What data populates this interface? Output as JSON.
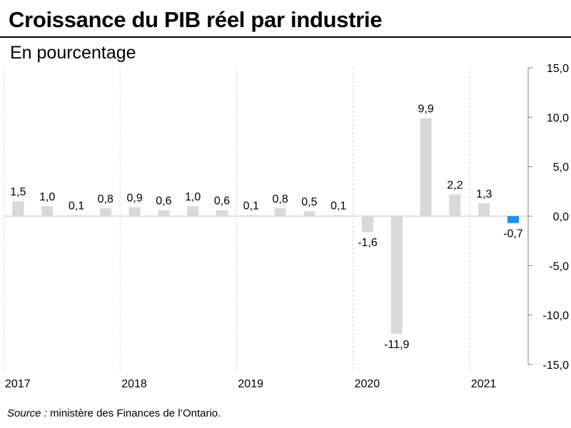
{
  "header": {
    "title": "Croissance du PIB réel par industrie",
    "subtitle": "En pourcentage"
  },
  "footer": {
    "source_label": "Source :",
    "source_text": "ministère des Finances de l’Ontario."
  },
  "colors": {
    "bar_default": "#d9d9d9",
    "bar_highlight": "#1e90e8",
    "zero_line": "#bfbfbf",
    "gridline": "#d0d0d0"
  },
  "chart_data": {
    "type": "bar",
    "title": "Croissance du PIB réel par industrie",
    "subtitle": "En pourcentage",
    "xlabel": "",
    "ylabel": "",
    "ylim": [
      -15,
      15
    ],
    "yticks": [
      15,
      10,
      5,
      0,
      -5,
      -10,
      -15
    ],
    "ytick_labels": [
      "15,0",
      "10,0",
      "5,0",
      "0,0",
      "-5,0",
      "-10,0",
      "-15,0"
    ],
    "y_axis_side": "right",
    "year_labels": [
      "2017",
      "2018",
      "2019",
      "2020",
      "2021"
    ],
    "quarters_per_year": 4,
    "categories": [
      "2017 T1",
      "2017 T2",
      "2017 T3",
      "2017 T4",
      "2018 T1",
      "2018 T2",
      "2018 T3",
      "2018 T4",
      "2019 T1",
      "2019 T2",
      "2019 T3",
      "2019 T4",
      "2020 T1",
      "2020 T2",
      "2020 T3",
      "2020 T4",
      "2021 T1",
      "2021 T2"
    ],
    "values": [
      1.5,
      1.0,
      0.1,
      0.8,
      0.9,
      0.6,
      1.0,
      0.6,
      0.1,
      0.8,
      0.5,
      0.1,
      -1.6,
      -11.9,
      9.9,
      2.2,
      1.3,
      -0.7
    ],
    "value_labels": [
      "1,5",
      "1,0",
      "0,1",
      "0,8",
      "0,9",
      "0,6",
      "1,0",
      "0,6",
      "0,1",
      "0,8",
      "0,5",
      "0,1",
      "-1,6",
      "-11,9",
      "9,9",
      "2,2",
      "1,3",
      "-0,7"
    ],
    "highlight_index": 17,
    "grid": false,
    "year_separators": "dashed"
  }
}
